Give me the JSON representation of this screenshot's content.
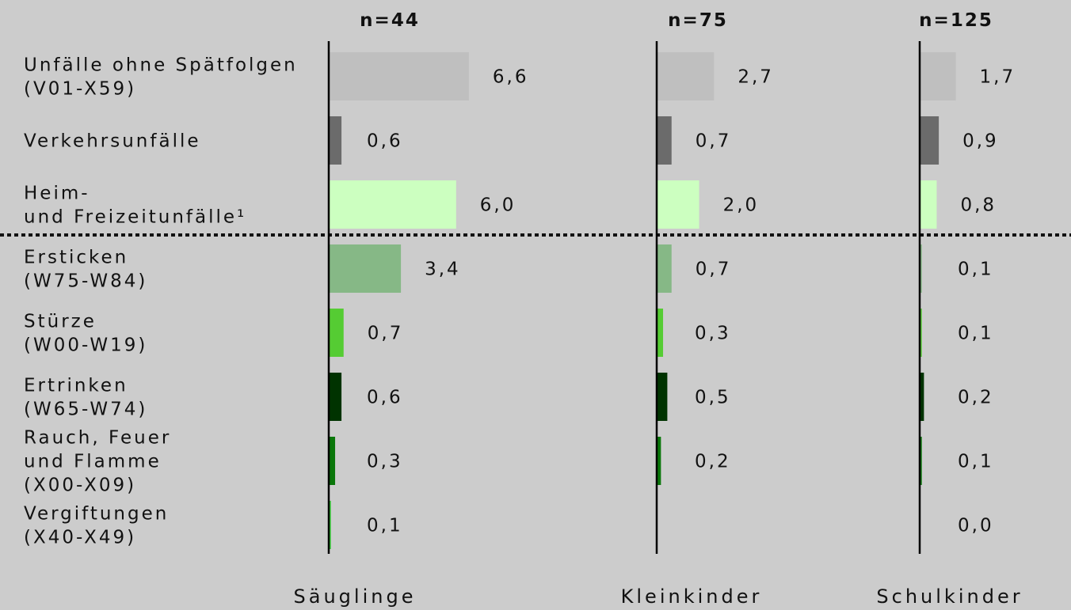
{
  "chart_data": {
    "type": "bar",
    "orientation": "horizontal",
    "categories": [
      [
        "Unfälle ohne Spätfolgen",
        "(V01-X59)"
      ],
      [
        "Verkehrsunfälle"
      ],
      [
        "Heim-",
        "und Freizeitunfälle¹"
      ],
      [
        "Ersticken",
        "(W75-W84)"
      ],
      [
        "Stürze",
        "(W00-W19)"
      ],
      [
        "Ertrinken",
        "(W65-W74)"
      ],
      [
        "Rauch, Feuer",
        "und Flamme",
        "(X00-X09)"
      ],
      [
        "Vergiftungen",
        "(X40-X49)"
      ]
    ],
    "series": [
      {
        "name": "Säuglinge",
        "n_label": "n=44",
        "values": [
          6.6,
          0.6,
          6.0,
          3.4,
          0.7,
          0.6,
          0.3,
          0.1
        ],
        "value_labels": [
          "6,6",
          "0,6",
          "6,0",
          "3,4",
          "0,7",
          "0,6",
          "0,3",
          "0,1"
        ]
      },
      {
        "name": "Kleinkinder",
        "n_label": "n=75",
        "values": [
          2.7,
          0.7,
          2.0,
          0.7,
          0.3,
          0.5,
          0.2,
          null
        ],
        "value_labels": [
          "2,7",
          "0,7",
          "2,0",
          "0,7",
          "0,3",
          "0,5",
          "0,2",
          ""
        ]
      },
      {
        "name": "Schulkinder",
        "n_label": "n=125",
        "values": [
          1.7,
          0.9,
          0.8,
          0.1,
          0.1,
          0.2,
          0.1,
          0.0
        ],
        "value_labels": [
          "1,7",
          "0,9",
          "0,8",
          "0,1",
          "0,1",
          "0,2",
          "0,1",
          "0,0"
        ]
      }
    ],
    "colors": [
      "#bfbfbf",
      "#6b6b6b",
      "#ccffc0",
      "#86b886",
      "#55cc33",
      "#003300",
      "#0a770a",
      "#33cc33"
    ],
    "divider": "dotted line between Heim- und Freizeitunfälle and Ersticken",
    "background": "#cccccc"
  }
}
